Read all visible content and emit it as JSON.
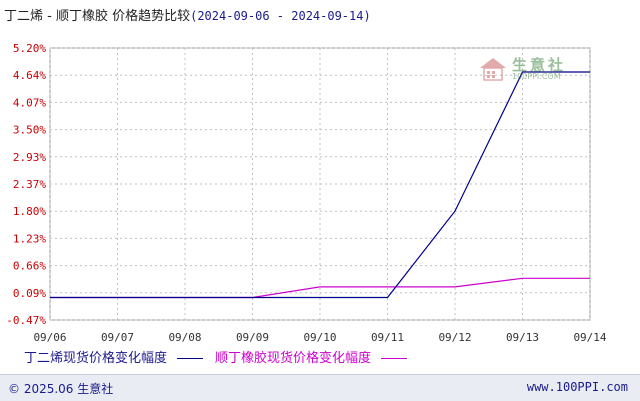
{
  "title": {
    "main": "丁二烯 - 顺丁橡胶 价格趋势比较",
    "range": "(2024-09-06 - 2024-09-14)"
  },
  "chart_data": {
    "type": "line",
    "title": "丁二烯 - 顺丁橡胶 价格趋势比较 (2024-09-06 - 2024-09-14)",
    "categories": [
      "09/06",
      "09/07",
      "09/08",
      "09/09",
      "09/10",
      "09/11",
      "09/12",
      "09/13",
      "09/14"
    ],
    "y_ticks": [
      "5.20%",
      "4.64%",
      "4.07%",
      "3.50%",
      "2.93%",
      "2.37%",
      "1.80%",
      "1.23%",
      "0.66%",
      "0.09%",
      "-0.47%"
    ],
    "ylim": [
      -0.47,
      5.2
    ],
    "grid": true,
    "legend_position": "bottom-left",
    "series": [
      {
        "name": "丁二烯现货价格变化幅度",
        "color": "#00008b",
        "values": [
          0,
          0,
          0,
          0,
          0,
          0,
          1.8,
          4.7,
          4.7
        ]
      },
      {
        "name": "顺丁橡胶现货价格变化幅度",
        "color": "#cc00cc",
        "values": [
          0,
          0,
          0,
          0,
          0.22,
          0.22,
          0.22,
          0.4,
          0.4
        ]
      }
    ]
  },
  "legend": {
    "s1": "丁二烯现货价格变化幅度",
    "s2": "顺丁橡胶现货价格变化幅度"
  },
  "watermark": {
    "text": "生意社",
    "url": "100PPI.COM"
  },
  "footer": {
    "copyright": "© 2025.06 生意社",
    "site": "www.100PPI.com"
  },
  "colors": {
    "s1": "#00008b",
    "s2": "#cc00cc",
    "grid": "#c0c0c0",
    "ytick": "#cc0000"
  }
}
